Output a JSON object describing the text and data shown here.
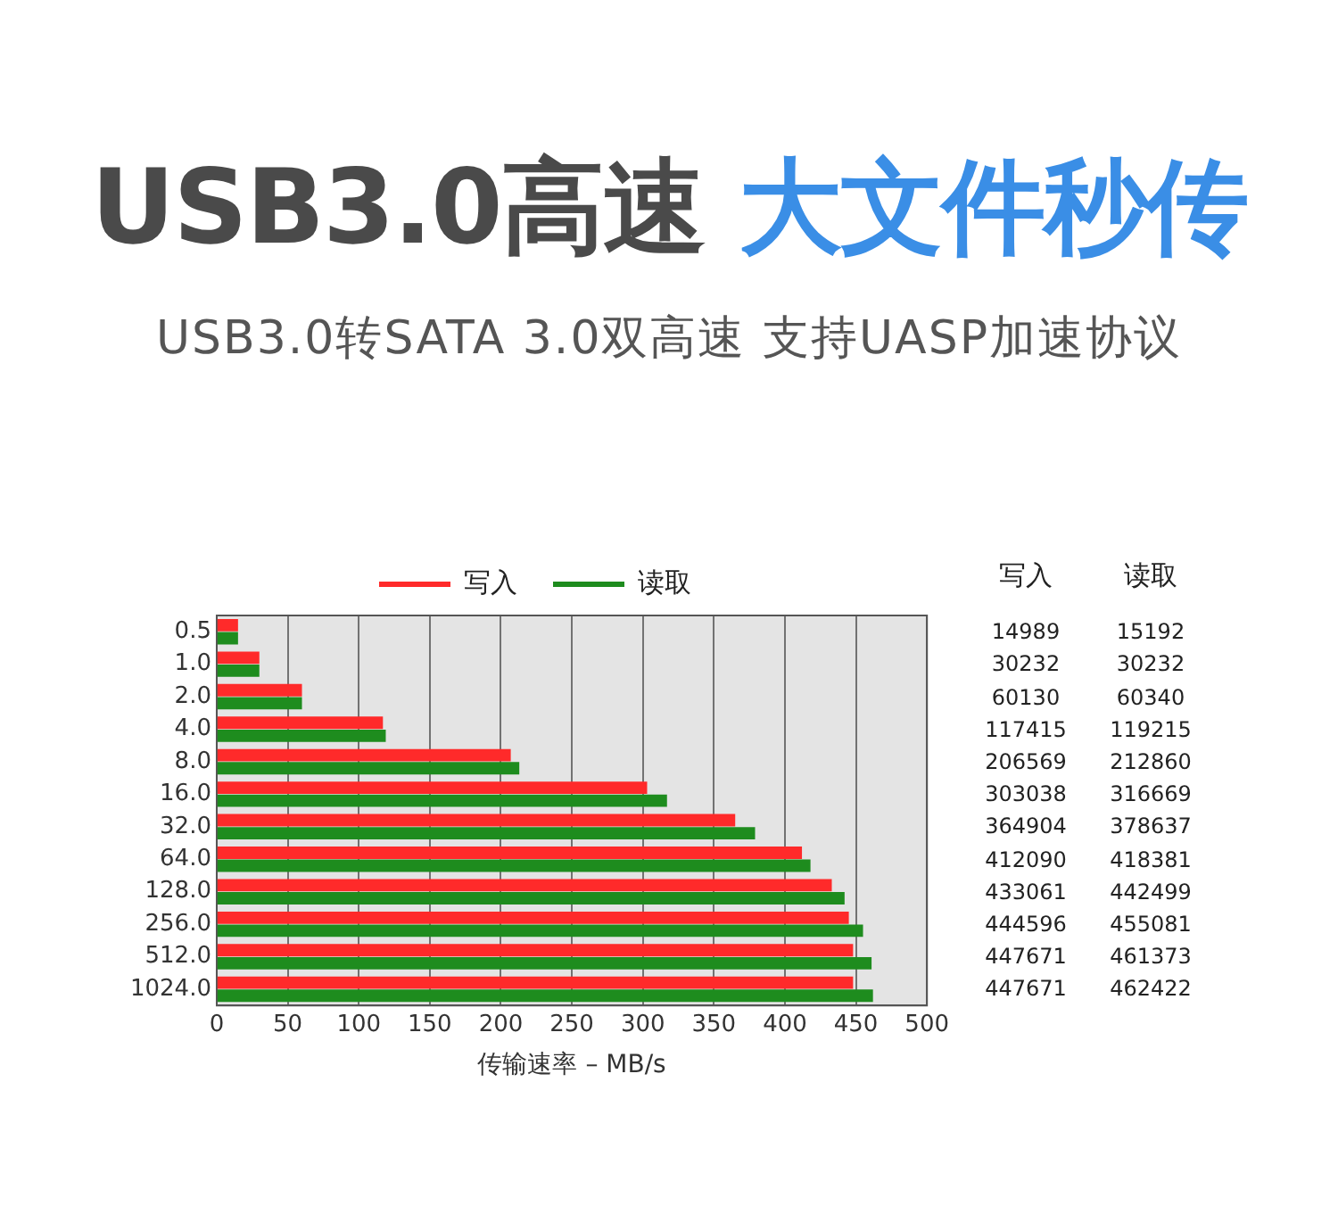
{
  "chart_data": [
    {
      "type": "bar",
      "orientation": "horizontal",
      "title": "USB3.0高速 大文件秒传",
      "subtitle": "USB3.0转SATA 3.0双高速 支持UASP加速协议",
      "xlabel": "传输速率 – MB/s",
      "categories": [
        "0.5",
        "1.0",
        "2.0",
        "4.0",
        "8.0",
        "16.0",
        "32.0",
        "64.0",
        "128.0",
        "256.0",
        "512.0",
        "1024.0"
      ],
      "series": [
        {
          "name": "写入",
          "color": "#ff2a2a",
          "values": [
            15,
            30,
            60,
            117,
            207,
            303,
            365,
            412,
            433,
            445,
            448,
            448
          ]
        },
        {
          "name": "读取",
          "color": "#1e8c1e",
          "values": [
            15,
            30,
            60,
            119,
            213,
            317,
            379,
            418,
            442,
            455,
            461,
            462
          ]
        }
      ],
      "xlim": [
        0,
        500
      ],
      "xticks": [
        0,
        50,
        100,
        150,
        200,
        250,
        300,
        350,
        400,
        450,
        500
      ],
      "grid": "x",
      "legend": "top"
    },
    {
      "type": "other",
      "annotations": [
        "写入",
        "读取",
        "14989",
        "15192",
        "30232",
        "30232",
        "60130",
        "60340",
        "117415",
        "119215",
        "206569",
        "212860",
        "303038",
        "316669",
        "364904",
        "378637",
        "412090",
        "418381",
        "433061",
        "442499",
        "444596",
        "455081",
        "447671",
        "461373",
        "447671",
        "462422"
      ]
    }
  ]
}
